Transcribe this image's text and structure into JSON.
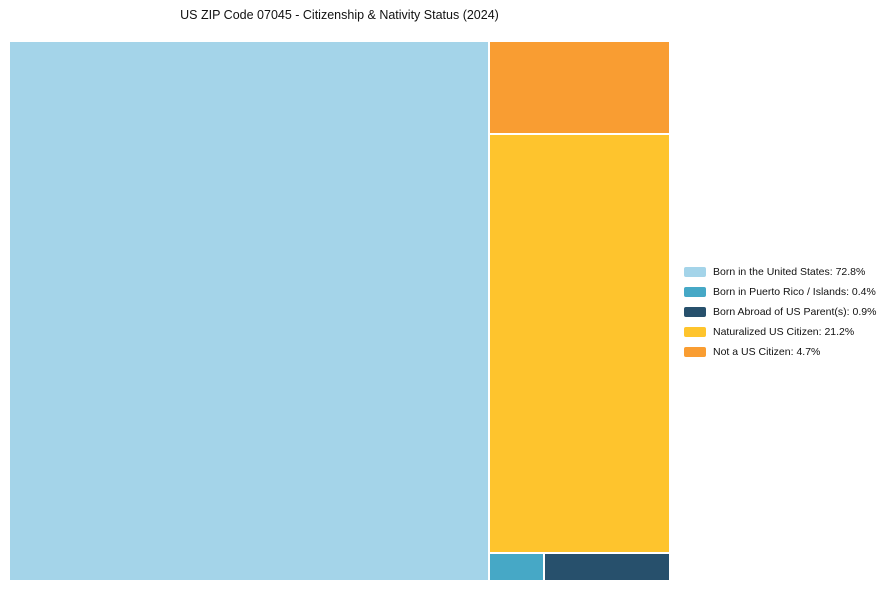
{
  "page": {
    "background": "#ffffff"
  },
  "chart_data": {
    "type": "treemap",
    "title": "US ZIP Code 07045 - Citizenship & Nativity Status (2024)",
    "unit": "%",
    "legend_position": "right",
    "total": 100,
    "segments": [
      {
        "label": "Born in the United States",
        "value": 72.8,
        "color": "#A4D4E9",
        "legend_text": "Born in the United States: 72.8%"
      },
      {
        "label": "Born in Puerto Rico / Islands",
        "value": 0.4,
        "color": "#46A8C6",
        "legend_text": "Born in Puerto Rico / Islands: 0.4%"
      },
      {
        "label": "Born Abroad of US Parent(s)",
        "value": 0.9,
        "color": "#27506C",
        "legend_text": "Born Abroad of US Parent(s): 0.9%"
      },
      {
        "label": "Naturalized US Citizen",
        "value": 21.2,
        "color": "#FEC42D",
        "legend_text": "Naturalized US Citizen: 21.2%"
      },
      {
        "label": "Not a US Citizen",
        "value": 4.7,
        "color": "#F99D32",
        "legend_text": "Not a US Citizen: 4.7%"
      }
    ]
  }
}
